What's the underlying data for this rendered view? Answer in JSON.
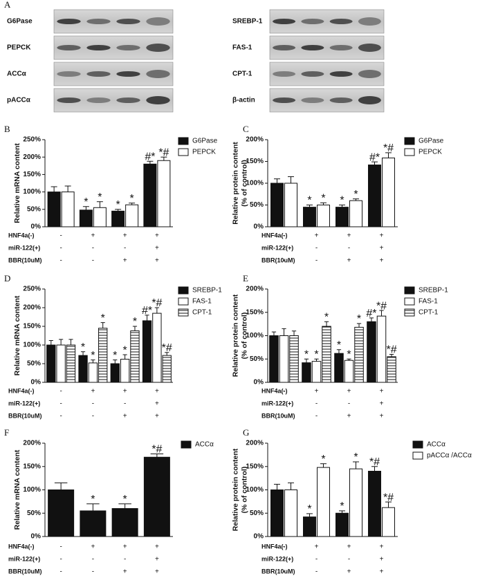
{
  "panel_A": {
    "label": "A",
    "left": [
      "G6Pase",
      "PEPCK",
      "ACCα",
      "pACCα"
    ],
    "right": [
      "SREBP-1",
      "FAS-1",
      "CPT-1",
      "β-actin"
    ]
  },
  "chart_data": [
    {
      "type": "bar",
      "panel": "B",
      "ylabel": [
        "Relative mRNA content"
      ],
      "ylim": [
        0,
        250
      ],
      "yticks": [
        {
          "value": 0,
          "label": "0%"
        },
        {
          "value": 50,
          "label": "50%"
        },
        {
          "value": 100,
          "label": "100%"
        },
        {
          "value": 150,
          "label": "150%"
        },
        {
          "value": 200,
          "label": "200%"
        },
        {
          "value": 250,
          "label": "250%"
        }
      ],
      "conditions": [
        {
          "name": "HNF4a(-)",
          "signs": [
            "-",
            "+",
            "+",
            "+"
          ]
        },
        {
          "name": "miR-122(+)",
          "signs": [
            "-",
            "-",
            "-",
            "+"
          ]
        },
        {
          "name": "BBR(10uM)",
          "signs": [
            "-",
            "-",
            "+",
            "+"
          ]
        }
      ],
      "series": [
        {
          "name": "G6Pase",
          "color": "#111111",
          "values": [
            100,
            48,
            45,
            180
          ],
          "errors": [
            15,
            10,
            5,
            8
          ],
          "annotations": [
            null,
            "*",
            "*",
            "#*"
          ]
        },
        {
          "name": "PEPCK",
          "color": "#ffffff",
          "values": [
            100,
            55,
            63,
            190
          ],
          "errors": [
            17,
            17,
            5,
            10
          ],
          "annotations": [
            null,
            "*",
            "*",
            "*#"
          ]
        }
      ]
    },
    {
      "type": "bar",
      "panel": "C",
      "ylabel": [
        "Relative protein content",
        "(% of control)"
      ],
      "ylim": [
        0,
        200
      ],
      "yticks": [
        {
          "value": 0,
          "label": "0%"
        },
        {
          "value": 50,
          "label": "50%"
        },
        {
          "value": 100,
          "label": "100%"
        },
        {
          "value": 150,
          "label": "150%"
        },
        {
          "value": 200,
          "label": "200%"
        }
      ],
      "conditions": [
        {
          "name": "HNF4a(-)",
          "signs": [
            "-",
            "+",
            "+",
            "+"
          ]
        },
        {
          "name": "miR-122(+)",
          "signs": [
            "-",
            "-",
            "-",
            "+"
          ]
        },
        {
          "name": "BBR(10uM)",
          "signs": [
            "-",
            "-",
            "+",
            "+"
          ]
        }
      ],
      "series": [
        {
          "name": "G6Pase",
          "color": "#111111",
          "values": [
            100,
            45,
            45,
            142
          ],
          "errors": [
            10,
            5,
            5,
            7
          ],
          "annotations": [
            null,
            "*",
            "*",
            "#*"
          ]
        },
        {
          "name": "PEPCK",
          "color": "#ffffff",
          "values": [
            100,
            50,
            60,
            158
          ],
          "errors": [
            15,
            5,
            4,
            12
          ],
          "annotations": [
            null,
            "*",
            "*",
            "*#"
          ]
        }
      ]
    },
    {
      "type": "bar",
      "panel": "D",
      "ylabel": [
        "Relative mRNA content"
      ],
      "ylim": [
        0,
        250
      ],
      "yticks": [
        {
          "value": 0,
          "label": "0%"
        },
        {
          "value": 50,
          "label": "50%"
        },
        {
          "value": 100,
          "label": "100%"
        },
        {
          "value": 150,
          "label": "150%"
        },
        {
          "value": 200,
          "label": "200%"
        },
        {
          "value": 250,
          "label": "250%"
        }
      ],
      "conditions": [
        {
          "name": "HNF4a(-)",
          "signs": [
            "-",
            "+",
            "+",
            "+"
          ]
        },
        {
          "name": "miR-122(+)",
          "signs": [
            "-",
            "-",
            "-",
            "+"
          ]
        },
        {
          "name": "BBR(10uM)",
          "signs": [
            "-",
            "-",
            "+",
            "+"
          ]
        }
      ],
      "series": [
        {
          "name": "SREBP-1",
          "color": "#111111",
          "values": [
            100,
            72,
            50,
            165
          ],
          "errors": [
            12,
            10,
            10,
            15
          ],
          "annotations": [
            null,
            "*",
            "*",
            "#*"
          ]
        },
        {
          "name": "FAS-1",
          "color": "#ffffff",
          "values": [
            100,
            52,
            62,
            185
          ],
          "errors": [
            15,
            8,
            12,
            15
          ],
          "annotations": [
            null,
            "*",
            "*",
            "*#"
          ]
        },
        {
          "name": "CPT-1",
          "color": "#ffffff",
          "hatch": "horizontal",
          "values": [
            100,
            145,
            138,
            72
          ],
          "errors": [
            15,
            15,
            12,
            8
          ],
          "annotations": [
            null,
            "*",
            "*",
            "*#"
          ]
        }
      ]
    },
    {
      "type": "bar",
      "panel": "E",
      "ylabel": [
        "Relative protein content",
        "(% of control)"
      ],
      "ylim": [
        0,
        200
      ],
      "yticks": [
        {
          "value": 0,
          "label": "0%"
        },
        {
          "value": 50,
          "label": "50%"
        },
        {
          "value": 100,
          "label": "100%"
        },
        {
          "value": 150,
          "label": "150%"
        },
        {
          "value": 200,
          "label": "200%"
        }
      ],
      "conditions": [
        {
          "name": "HNF4a(-)",
          "signs": [
            "-",
            "+",
            "+",
            "+"
          ]
        },
        {
          "name": "miR-122(+)",
          "signs": [
            "-",
            "-",
            "-",
            "+"
          ]
        },
        {
          "name": "BBR(10uM)",
          "signs": [
            "-",
            "-",
            "+",
            "+"
          ]
        }
      ],
      "series": [
        {
          "name": "SREBP-1",
          "color": "#111111",
          "values": [
            100,
            42,
            62,
            130
          ],
          "errors": [
            8,
            8,
            8,
            8
          ],
          "annotations": [
            null,
            "*",
            "*",
            "#*"
          ]
        },
        {
          "name": "FAS-1",
          "color": "#ffffff",
          "values": [
            100,
            45,
            47,
            142
          ],
          "errors": [
            15,
            5,
            3,
            12
          ],
          "annotations": [
            null,
            "*",
            "*",
            "*#"
          ]
        },
        {
          "name": "CPT-1",
          "color": "#ffffff",
          "hatch": "horizontal",
          "values": [
            100,
            120,
            118,
            55
          ],
          "errors": [
            10,
            10,
            8,
            5
          ],
          "annotations": [
            null,
            "*",
            "*",
            "*#"
          ]
        }
      ]
    },
    {
      "type": "bar",
      "panel": "F",
      "ylabel": [
        "Relative mRNA content"
      ],
      "ylim": [
        0,
        200
      ],
      "yticks": [
        {
          "value": 0,
          "label": "0%"
        },
        {
          "value": 50,
          "label": "50%"
        },
        {
          "value": 100,
          "label": "100%"
        },
        {
          "value": 150,
          "label": "150%"
        },
        {
          "value": 200,
          "label": "200%"
        }
      ],
      "conditions": [
        {
          "name": "HNF4a(-)",
          "signs": [
            "-",
            "+",
            "+",
            "+"
          ]
        },
        {
          "name": "miR-122(+)",
          "signs": [
            "-",
            "-",
            "-",
            "+"
          ]
        },
        {
          "name": "BBR(10uM)",
          "signs": [
            "-",
            "-",
            "+",
            "+"
          ]
        }
      ],
      "series": [
        {
          "name": "ACCα",
          "color": "#111111",
          "values": [
            100,
            55,
            60,
            170
          ],
          "errors": [
            15,
            15,
            10,
            7
          ],
          "annotations": [
            null,
            "*",
            "*",
            "*#"
          ]
        }
      ]
    },
    {
      "type": "bar",
      "panel": "G",
      "ylabel": [
        "Relative protein content",
        "(% of control)"
      ],
      "ylim": [
        0,
        200
      ],
      "yticks": [
        {
          "value": 0,
          "label": "0%"
        },
        {
          "value": 50,
          "label": "50%"
        },
        {
          "value": 100,
          "label": "100%"
        },
        {
          "value": 150,
          "label": "150%"
        },
        {
          "value": 200,
          "label": "200%"
        }
      ],
      "conditions": [
        {
          "name": "HNF4a(-)",
          "signs": [
            "-",
            "+",
            "+",
            "+"
          ]
        },
        {
          "name": "miR-122(+)",
          "signs": [
            "-",
            "-",
            "-",
            "+"
          ]
        },
        {
          "name": "BBR(10uM)",
          "signs": [
            "-",
            "-",
            "+",
            "+"
          ]
        }
      ],
      "series": [
        {
          "name": "ACCα",
          "color": "#111111",
          "values": [
            100,
            42,
            50,
            140
          ],
          "errors": [
            12,
            7,
            5,
            10
          ],
          "annotations": [
            null,
            "*",
            "*",
            "*#"
          ]
        },
        {
          "name": "pACCα /ACCα",
          "color": "#ffffff",
          "values": [
            100,
            148,
            145,
            62
          ],
          "errors": [
            15,
            8,
            15,
            12
          ],
          "annotations": [
            null,
            "*",
            "*",
            "*#"
          ]
        }
      ]
    }
  ]
}
